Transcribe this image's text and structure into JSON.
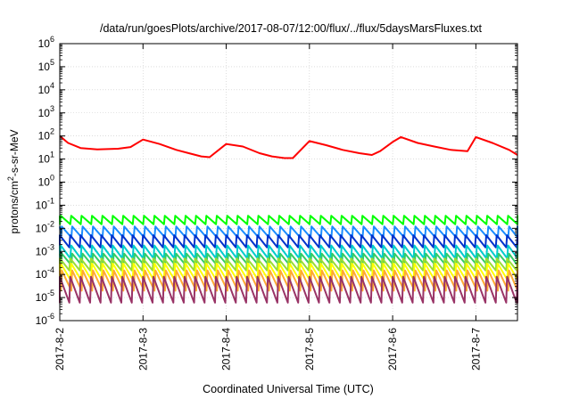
{
  "chart_data": {
    "type": "line",
    "title": "/data/run/goesPlots/archive/2017-08-07/12:00/flux/../flux/5daysMarsFluxes.txt",
    "xlabel": "Coordinated Universal Time (UTC)",
    "ylabel": {
      "base": "protons/cm",
      "sup": "2",
      "rest": "-s-sr-MeV"
    },
    "x_tick_labels": [
      "2017-8-2",
      "2017-8-3",
      "2017-8-4",
      "2017-8-5",
      "2017-8-6",
      "2017-8-7"
    ],
    "x_ticks_days": [
      0,
      1,
      2,
      3,
      4,
      5
    ],
    "xlim_days": [
      0,
      5.5
    ],
    "y_scale": "log",
    "ylim": [
      1e-06,
      1000000.0
    ],
    "y_tick_exponents": [
      -6,
      -5,
      -4,
      -3,
      -2,
      -1,
      0,
      1,
      2,
      3,
      4,
      5,
      6
    ],
    "y_tick_base": "10",
    "grid": true,
    "legend": "none",
    "cycle_days": 0.125,
    "series": [
      {
        "color": "#ff0000",
        "points_days_value": [
          [
            0,
            100
          ],
          [
            0.1,
            50
          ],
          [
            0.25,
            30
          ],
          [
            0.45,
            26
          ],
          [
            0.7,
            28
          ],
          [
            0.85,
            33
          ],
          [
            1,
            70
          ],
          [
            1.2,
            45
          ],
          [
            1.4,
            25
          ],
          [
            1.55,
            18
          ],
          [
            1.7,
            13
          ],
          [
            1.8,
            12
          ],
          [
            2,
            45
          ],
          [
            2.2,
            35
          ],
          [
            2.4,
            18
          ],
          [
            2.55,
            13
          ],
          [
            2.7,
            11
          ],
          [
            2.8,
            11
          ],
          [
            3,
            60
          ],
          [
            3.2,
            40
          ],
          [
            3.4,
            25
          ],
          [
            3.6,
            18
          ],
          [
            3.75,
            15
          ],
          [
            3.85,
            22
          ],
          [
            4,
            55
          ],
          [
            4.1,
            90
          ],
          [
            4.3,
            50
          ],
          [
            4.5,
            35
          ],
          [
            4.7,
            25
          ],
          [
            4.9,
            22
          ],
          [
            5,
            90
          ],
          [
            5.2,
            50
          ],
          [
            5.4,
            25
          ],
          [
            5.5,
            15
          ]
        ]
      },
      {
        "color": "#00ff00",
        "peak": 0.035,
        "trough": 0.015
      },
      {
        "color": "#1a8cff",
        "peak": 0.012,
        "trough": 0.004
      },
      {
        "color": "#0033cc",
        "peak": 0.005,
        "trough": 0.0015
      },
      {
        "color": "#00cccc",
        "peak": 0.0018,
        "trough": 0.0005
      },
      {
        "color": "#33cc66",
        "peak": 0.0008,
        "trough": 0.00025
      },
      {
        "color": "#99dd33",
        "peak": 0.0005,
        "trough": 0.00015
      },
      {
        "color": "#ffff00",
        "peak": 0.0003,
        "trough": 6e-05
      },
      {
        "color": "#ffaa33",
        "peak": 0.00015,
        "trough": 2e-05
      },
      {
        "color": "#993366",
        "peak": 8e-05,
        "trough": 6e-06
      }
    ]
  }
}
